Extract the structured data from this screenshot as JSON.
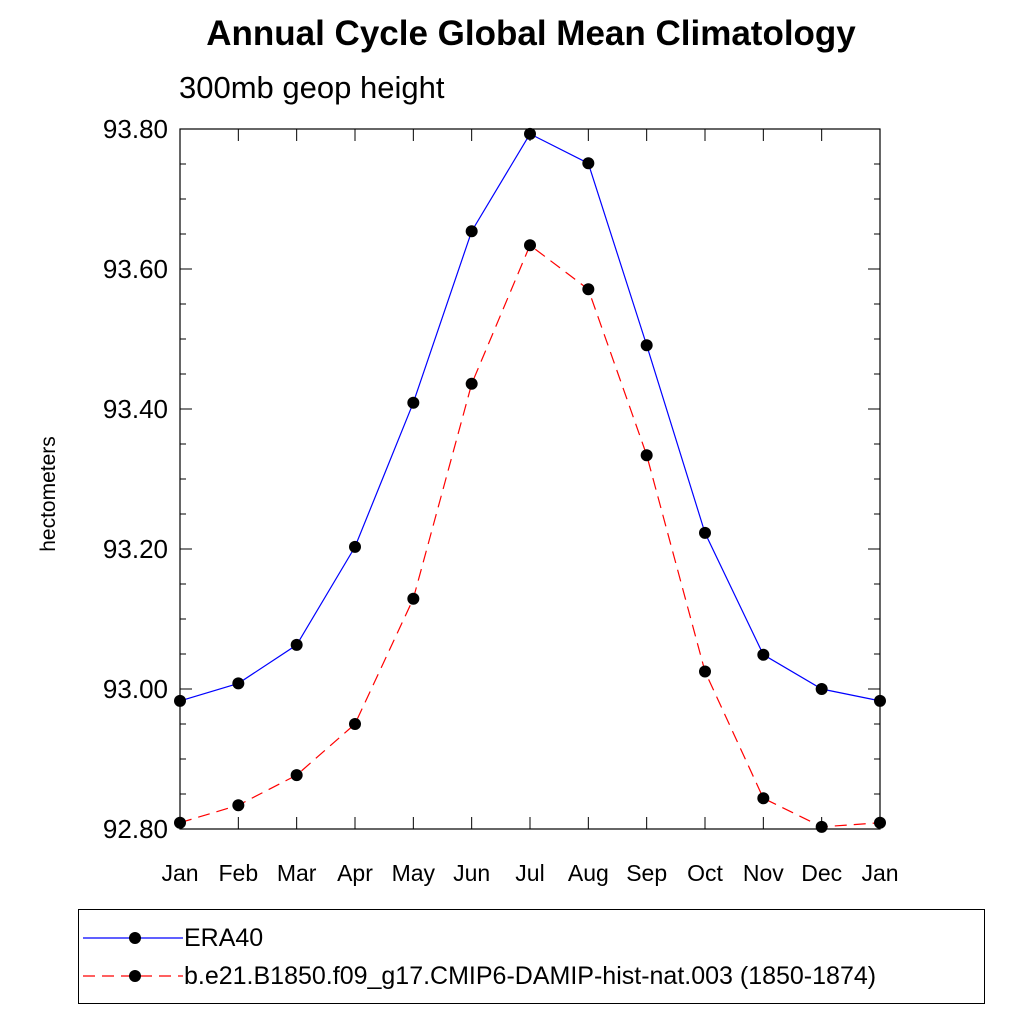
{
  "chart_data": {
    "type": "line",
    "title": "Annual Cycle Global Mean Climatology",
    "subtitle": "300mb geop height",
    "xlabel": "",
    "ylabel": "hectometers",
    "categories": [
      "Jan",
      "Feb",
      "Mar",
      "Apr",
      "May",
      "Jun",
      "Jul",
      "Aug",
      "Sep",
      "Oct",
      "Nov",
      "Dec",
      "Jan"
    ],
    "ylim": [
      92.8,
      93.8
    ],
    "yticks": [
      92.8,
      93.0,
      93.2,
      93.4,
      93.6,
      93.8
    ],
    "ytick_labels": [
      "92.80",
      "93.00",
      "93.20",
      "93.40",
      "93.60",
      "93.80"
    ],
    "grid": false,
    "legend_position": "bottom",
    "series": [
      {
        "name": "ERA40",
        "color": "#0000ff",
        "line_style": "solid",
        "marker": "filled-circle",
        "values": [
          92.983,
          93.008,
          93.063,
          93.203,
          93.409,
          93.654,
          93.793,
          93.751,
          93.491,
          93.223,
          93.049,
          93.0,
          92.983
        ]
      },
      {
        "name": "b.e21.B1850.f09_g17.CMIP6-DAMIP-hist-nat.003 (1850-1874)",
        "color": "#ff0000",
        "line_style": "dashed",
        "marker": "filled-circle",
        "values": [
          92.809,
          92.834,
          92.877,
          92.95,
          93.129,
          93.436,
          93.634,
          93.571,
          93.334,
          93.025,
          92.844,
          92.803,
          92.809
        ]
      }
    ]
  }
}
